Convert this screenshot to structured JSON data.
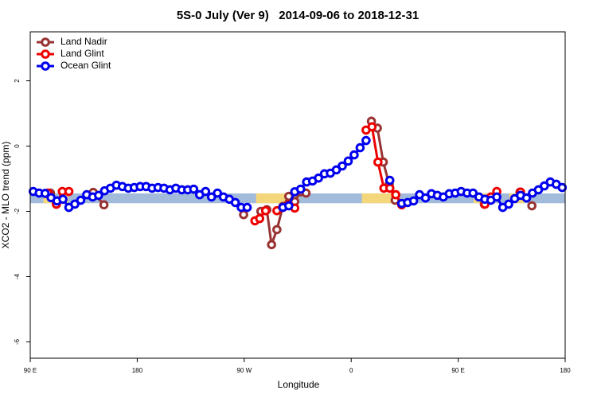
{
  "chart_data": {
    "type": "line",
    "title": "5S-0 July (Ver 9)   2014-09-06 to 2018-12-31",
    "x_label": "Longitude",
    "y_label": "XCO2 - MLO trend (ppm)",
    "xlim": [
      90,
      540
    ],
    "xticks": [
      {
        "value": 90,
        "label": "90 E"
      },
      {
        "value": 180,
        "label": "180"
      },
      {
        "value": 270,
        "label": "90 W"
      },
      {
        "value": 360,
        "label": "0"
      },
      {
        "value": 450,
        "label": "90 E"
      },
      {
        "value": 540,
        "label": "180"
      }
    ],
    "ylim": [
      -6.5,
      3.5
    ],
    "yticks": [
      -6,
      -4,
      -2,
      0,
      2
    ],
    "legend": "top-left",
    "band": {
      "ylim": [
        -1.75,
        -1.45
      ],
      "color": "#a3bbdb",
      "highlight_color": "#f5d77b",
      "highlights": [
        [
          101,
          111
        ],
        [
          117,
          122
        ],
        [
          280,
          316
        ],
        [
          369,
          399
        ],
        [
          463,
          476
        ],
        [
          493,
          506
        ]
      ]
    },
    "series": [
      {
        "name": "Land Nadir",
        "color": "#993333",
        "x": [
          107,
          112,
          112,
          143,
          152,
          152,
          269.5,
          275,
          284,
          289,
          293,
          297.5,
          302.5,
          307.5,
          312.5,
          317.5,
          322,
          350,
          377,
          382,
          387,
          392,
          397,
          430,
          472,
          490,
          502,
          507,
          512
        ],
        "values": [
          -1.44,
          -1.78,
          null,
          -1.42,
          -1.8,
          null,
          -2.1,
          null,
          -2.0,
          -1.95,
          -3.02,
          -2.56,
          -1.85,
          -1.54,
          -1.7,
          -1.4,
          -1.44,
          null,
          0.76,
          0.55,
          -0.49,
          -1.17,
          -1.66,
          null,
          -1.78,
          null,
          -1.41,
          null,
          -1.83
        ]
      },
      {
        "name": "Land Glint",
        "color": "#ee0000",
        "x": [
          105,
          112,
          117,
          122.5,
          200,
          279,
          283,
          288,
          292,
          297.5,
          302.5,
          307.5,
          312.5,
          340,
          372.5,
          377.5,
          382.5,
          387.5,
          392.5,
          397.5,
          402.5,
          440,
          472.5,
          477.5,
          482.5,
          490,
          502.5
        ],
        "values": [
          -1.44,
          -1.78,
          -1.39,
          -1.39,
          null,
          -2.29,
          -2.22,
          -1.98,
          null,
          -1.98,
          -1.88,
          -1.8,
          -1.9,
          null,
          0.49,
          0.59,
          -0.49,
          -1.29,
          -1.29,
          -1.49,
          -1.8,
          null,
          -1.78,
          -1.56,
          -1.39,
          null,
          -1.41
        ]
      },
      {
        "name": "Ocean Glint",
        "color": "#0000ee",
        "x": [
          92.5,
          97.5,
          102.5,
          107.5,
          112.5,
          117.5,
          122.5,
          127.5,
          132.5,
          137.5,
          142.5,
          147.5,
          152.5,
          157.5,
          162.5,
          167.5,
          172.5,
          177.5,
          182.5,
          187.5,
          192.5,
          197.5,
          202.5,
          207.5,
          212.5,
          217.5,
          222.5,
          227.5,
          232.5,
          237.5,
          242.5,
          247.5,
          252.5,
          257.5,
          262.5,
          267.5,
          272.5,
          287.5,
          302.5,
          307.5,
          312.5,
          317.5,
          322.5,
          327.5,
          332.5,
          337.5,
          342.5,
          347.5,
          352.5,
          357.5,
          362.5,
          367.5,
          372.5,
          382.5,
          392.5,
          397.5,
          402.5,
          407.5,
          412.5,
          417.5,
          422.5,
          427.5,
          432.5,
          437.5,
          442.5,
          447.5,
          452.5,
          457.5,
          462.5,
          467.5,
          472.5,
          477.5,
          482.5,
          487.5,
          492.5,
          497.5,
          502.5,
          507.5,
          512.5,
          517.5,
          522.5,
          527.5,
          532.5,
          537.5
        ],
        "values": [
          -1.39,
          -1.44,
          -1.45,
          -1.58,
          -1.68,
          -1.63,
          -1.88,
          -1.78,
          -1.66,
          -1.49,
          -1.56,
          -1.51,
          -1.37,
          -1.29,
          -1.2,
          -1.24,
          -1.29,
          -1.27,
          -1.24,
          -1.24,
          -1.29,
          -1.27,
          -1.29,
          -1.34,
          -1.29,
          -1.34,
          -1.34,
          -1.32,
          -1.49,
          -1.39,
          -1.56,
          -1.44,
          -1.56,
          -1.63,
          -1.73,
          -1.88,
          -1.88,
          null,
          -1.88,
          -1.83,
          -1.4,
          -1.32,
          -1.1,
          -1.07,
          -0.98,
          -0.85,
          -0.83,
          -0.73,
          -0.61,
          -0.46,
          -0.27,
          -0.05,
          0.17,
          null,
          -1.05,
          null,
          -1.76,
          -1.73,
          -1.68,
          -1.49,
          -1.59,
          -1.46,
          -1.51,
          -1.56,
          -1.46,
          -1.44,
          -1.39,
          -1.44,
          -1.44,
          -1.56,
          -1.63,
          -1.66,
          -1.56,
          -1.88,
          -1.78,
          -1.61,
          -1.51,
          -1.59,
          -1.44,
          -1.34,
          -1.22,
          -1.1,
          -1.17,
          -1.27
        ]
      }
    ]
  }
}
